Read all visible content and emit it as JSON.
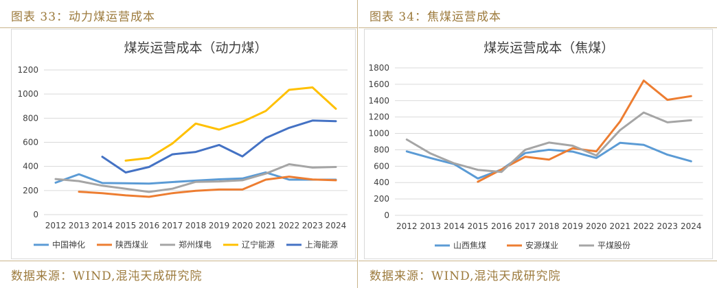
{
  "left": {
    "figure_label": "图表 33：动力煤运营成本",
    "source": "数据来源：WIND,混沌天成研究院",
    "chart_data": {
      "type": "line",
      "title": "煤炭运营成本（动力煤）",
      "categories": [
        "2012",
        "2013",
        "2014",
        "2015",
        "2016",
        "2017",
        "2018",
        "2019",
        "2020",
        "2021",
        "2022",
        "2023",
        "2024"
      ],
      "ylim": [
        0,
        1200
      ],
      "yticks": [
        0,
        200,
        400,
        600,
        800,
        1000,
        1200
      ],
      "grid": true,
      "legend_position": "bottom",
      "series": [
        {
          "name": "中国神化",
          "color": "#5b9bd5",
          "values": [
            265,
            335,
            262,
            260,
            257,
            270,
            282,
            293,
            300,
            350,
            290,
            290,
            290
          ]
        },
        {
          "name": "陕西煤业",
          "color": "#ed7d31",
          "values": [
            null,
            190,
            178,
            160,
            148,
            178,
            198,
            208,
            208,
            290,
            315,
            292,
            285
          ]
        },
        {
          "name": "郑州煤电",
          "color": "#a5a5a5",
          "values": [
            295,
            278,
            240,
            215,
            188,
            215,
            272,
            275,
            285,
            340,
            418,
            390,
            395
          ]
        },
        {
          "name": "辽宁能源",
          "color": "#ffc000",
          "values": [
            null,
            null,
            null,
            448,
            470,
            590,
            755,
            705,
            770,
            860,
            1035,
            1055,
            878
          ]
        },
        {
          "name": "上海能源",
          "color": "#4472c4",
          "values": [
            null,
            null,
            480,
            350,
            395,
            500,
            520,
            578,
            483,
            635,
            720,
            780,
            775
          ]
        }
      ]
    }
  },
  "right": {
    "figure_label": "图表 34：焦煤运营成本",
    "source": "数据来源：WIND,混沌天成研究院",
    "chart_data": {
      "type": "line",
      "title": "煤炭运营成本（焦煤）",
      "categories": [
        "2012",
        "2013",
        "2014",
        "2015",
        "2016",
        "2017",
        "2018",
        "2019",
        "2020",
        "2021",
        "2022",
        "2023",
        "2024"
      ],
      "ylim": [
        0,
        1800
      ],
      "yticks": [
        0,
        200,
        400,
        600,
        800,
        1000,
        1200,
        1400,
        1600,
        1800
      ],
      "grid": true,
      "legend_position": "bottom",
      "series": [
        {
          "name": "山西焦煤",
          "color": "#5b9bd5",
          "values": [
            780,
            700,
            625,
            450,
            560,
            760,
            800,
            778,
            700,
            885,
            860,
            740,
            660
          ]
        },
        {
          "name": "安源煤业",
          "color": "#ed7d31",
          "values": [
            null,
            null,
            null,
            410,
            560,
            715,
            680,
            820,
            780,
            1145,
            1645,
            1410,
            1455
          ]
        },
        {
          "name": "平煤股份",
          "color": "#a5a5a5",
          "values": [
            925,
            755,
            635,
            555,
            530,
            800,
            888,
            850,
            730,
            1040,
            1255,
            1135,
            1160
          ]
        }
      ]
    }
  }
}
